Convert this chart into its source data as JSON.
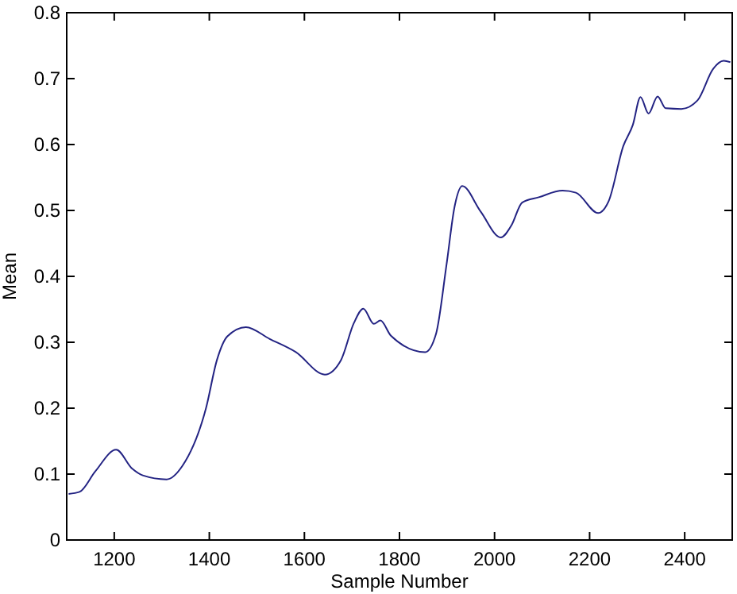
{
  "chart_data": {
    "type": "line",
    "xlabel": "Sample Number",
    "ylabel": "Mean",
    "xlim": [
      1100,
      2500
    ],
    "ylim": [
      0,
      0.8
    ],
    "xticks": [
      1200,
      1400,
      1600,
      1800,
      2000,
      2200,
      2400
    ],
    "yticks": [
      0,
      0.1,
      0.2,
      0.3,
      0.4,
      0.5,
      0.6,
      0.7,
      0.8
    ],
    "series": [
      {
        "color": "#232383",
        "x": [
          1104,
          1127,
          1160,
          1204,
          1238,
          1260,
          1310,
          1343,
          1393,
          1416,
          1438,
          1477,
          1527,
          1582,
          1643,
          1677,
          1704,
          1724,
          1746,
          1760,
          1782,
          1854,
          1877,
          1899,
          1916,
          1932,
          1971,
          2013,
          2036,
          2058,
          2093,
          2143,
          2171,
          2218,
          2240,
          2271,
          2291,
          2307,
          2324,
          2343,
          2360,
          2393,
          2427,
          2460,
          2482,
          2496
        ],
        "values": [
          0.07,
          0.073,
          0.104,
          0.137,
          0.108,
          0.098,
          0.092,
          0.112,
          0.2,
          0.273,
          0.309,
          0.323,
          0.305,
          0.285,
          0.251,
          0.273,
          0.329,
          0.351,
          0.328,
          0.333,
          0.31,
          0.285,
          0.313,
          0.418,
          0.506,
          0.537,
          0.498,
          0.459,
          0.478,
          0.512,
          0.52,
          0.53,
          0.527,
          0.496,
          0.514,
          0.598,
          0.63,
          0.672,
          0.647,
          0.673,
          0.655,
          0.654,
          0.667,
          0.715,
          0.727,
          0.725
        ]
      }
    ]
  }
}
